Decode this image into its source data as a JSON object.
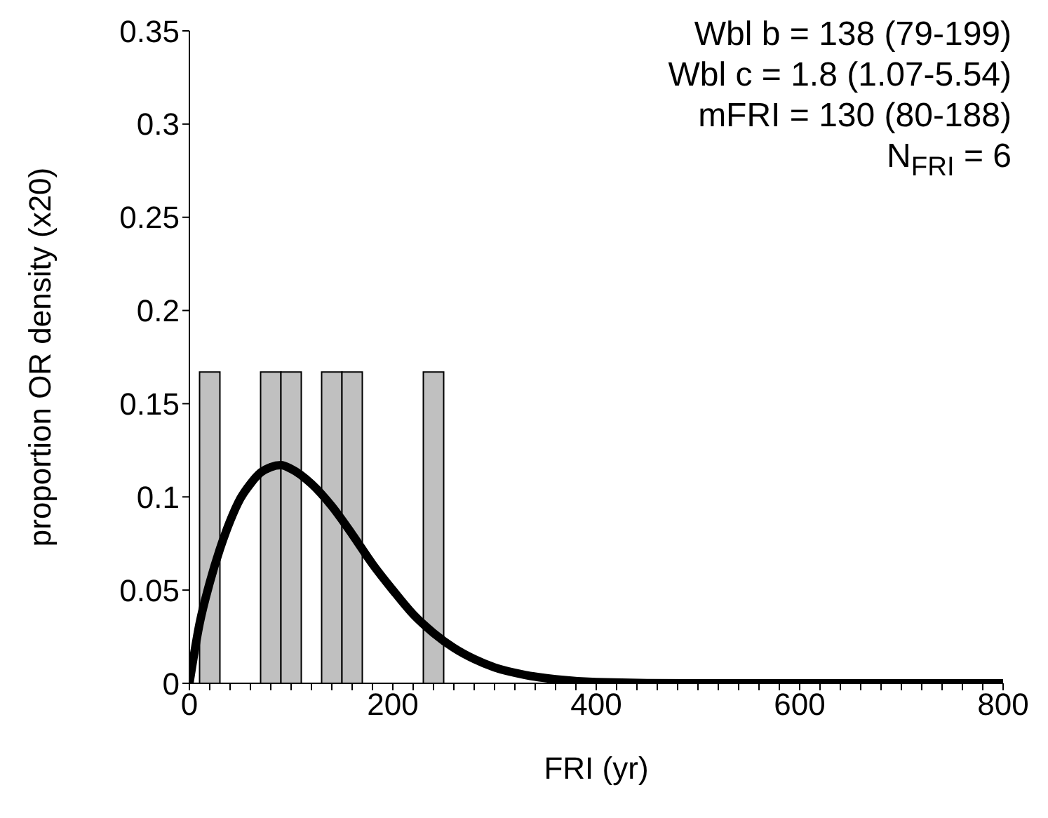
{
  "chart_data": {
    "type": "histogram",
    "xlabel": "FRI (yr)",
    "ylabel": "proportion OR density (x20)",
    "bins": [
      10,
      30,
      50,
      70,
      90,
      110,
      130,
      150,
      170,
      190,
      210,
      230,
      250
    ],
    "values": [
      0.167,
      0,
      0,
      0.167,
      0.167,
      0,
      0.167,
      0.167,
      0,
      0,
      0,
      0.167
    ],
    "color": "#c0c0c0",
    "series": [
      {
        "type": "line",
        "color": "#000000",
        "x": [
          0,
          10,
          20,
          30,
          40,
          50,
          60,
          70,
          80,
          90,
          100,
          120,
          140,
          160,
          180,
          200,
          220,
          240,
          260,
          280,
          300,
          330,
          360,
          400,
          500,
          600,
          700,
          800
        ],
        "values": [
          0,
          0.032,
          0.054,
          0.072,
          0.087,
          0.099,
          0.107,
          0.113,
          0.116,
          0.117,
          0.115,
          0.107,
          0.095,
          0.08,
          0.064,
          0.05,
          0.037,
          0.027,
          0.019,
          0.013,
          0.0085,
          0.0045,
          0.0022,
          0.0007,
          0,
          0,
          0,
          0
        ]
      }
    ],
    "marker": "none",
    "line_style": "solid",
    "grid": false,
    "legend": false,
    "xlim": [
      0,
      800
    ],
    "xticks": [
      0,
      {
        "value": 20,
        "label": null
      },
      {
        "value": 40,
        "label": null
      },
      {
        "value": 60,
        "label": null
      },
      {
        "value": 80,
        "label": null
      },
      {
        "value": 100,
        "label": null
      },
      {
        "value": 120,
        "label": null
      },
      {
        "value": 140,
        "label": null
      },
      {
        "value": 160,
        "label": null
      },
      {
        "value": 180,
        "label": null
      },
      200,
      {
        "value": 220,
        "label": null
      },
      {
        "value": 240,
        "label": null
      },
      {
        "value": 260,
        "label": null
      },
      {
        "value": 280,
        "label": null
      },
      {
        "value": 300,
        "label": null
      },
      {
        "value": 320,
        "label": null
      },
      {
        "value": 340,
        "label": null
      },
      {
        "value": 360,
        "label": null
      },
      {
        "value": 380,
        "label": null
      },
      400,
      {
        "value": 420,
        "label": null
      },
      {
        "value": 440,
        "label": null
      },
      {
        "value": 460,
        "label": null
      },
      {
        "value": 480,
        "label": null
      },
      {
        "value": 500,
        "label": null
      },
      {
        "value": 520,
        "label": null
      },
      {
        "value": 540,
        "label": null
      },
      {
        "value": 560,
        "label": null
      },
      {
        "value": 580,
        "label": null
      },
      600,
      {
        "value": 620,
        "label": null
      },
      {
        "value": 640,
        "label": null
      },
      {
        "value": 660,
        "label": null
      },
      {
        "value": 680,
        "label": null
      },
      {
        "value": 700,
        "label": null
      },
      {
        "value": 720,
        "label": null
      },
      {
        "value": 740,
        "label": null
      },
      {
        "value": 760,
        "label": null
      },
      {
        "value": 780,
        "label": null
      },
      800
    ],
    "ylim": [
      0,
      0.35
    ],
    "yticks": [
      0,
      0.05,
      0.1,
      0.15,
      0.2,
      0.25,
      0.3,
      0.35
    ],
    "annotations": [
      "Wbl b  = 138 (79-199)",
      "Wbl c  = 1.8 (1.07-5.54)",
      "mFRI = 130 (80-188)",
      "N$_{FRI}$ = 6"
    ]
  }
}
